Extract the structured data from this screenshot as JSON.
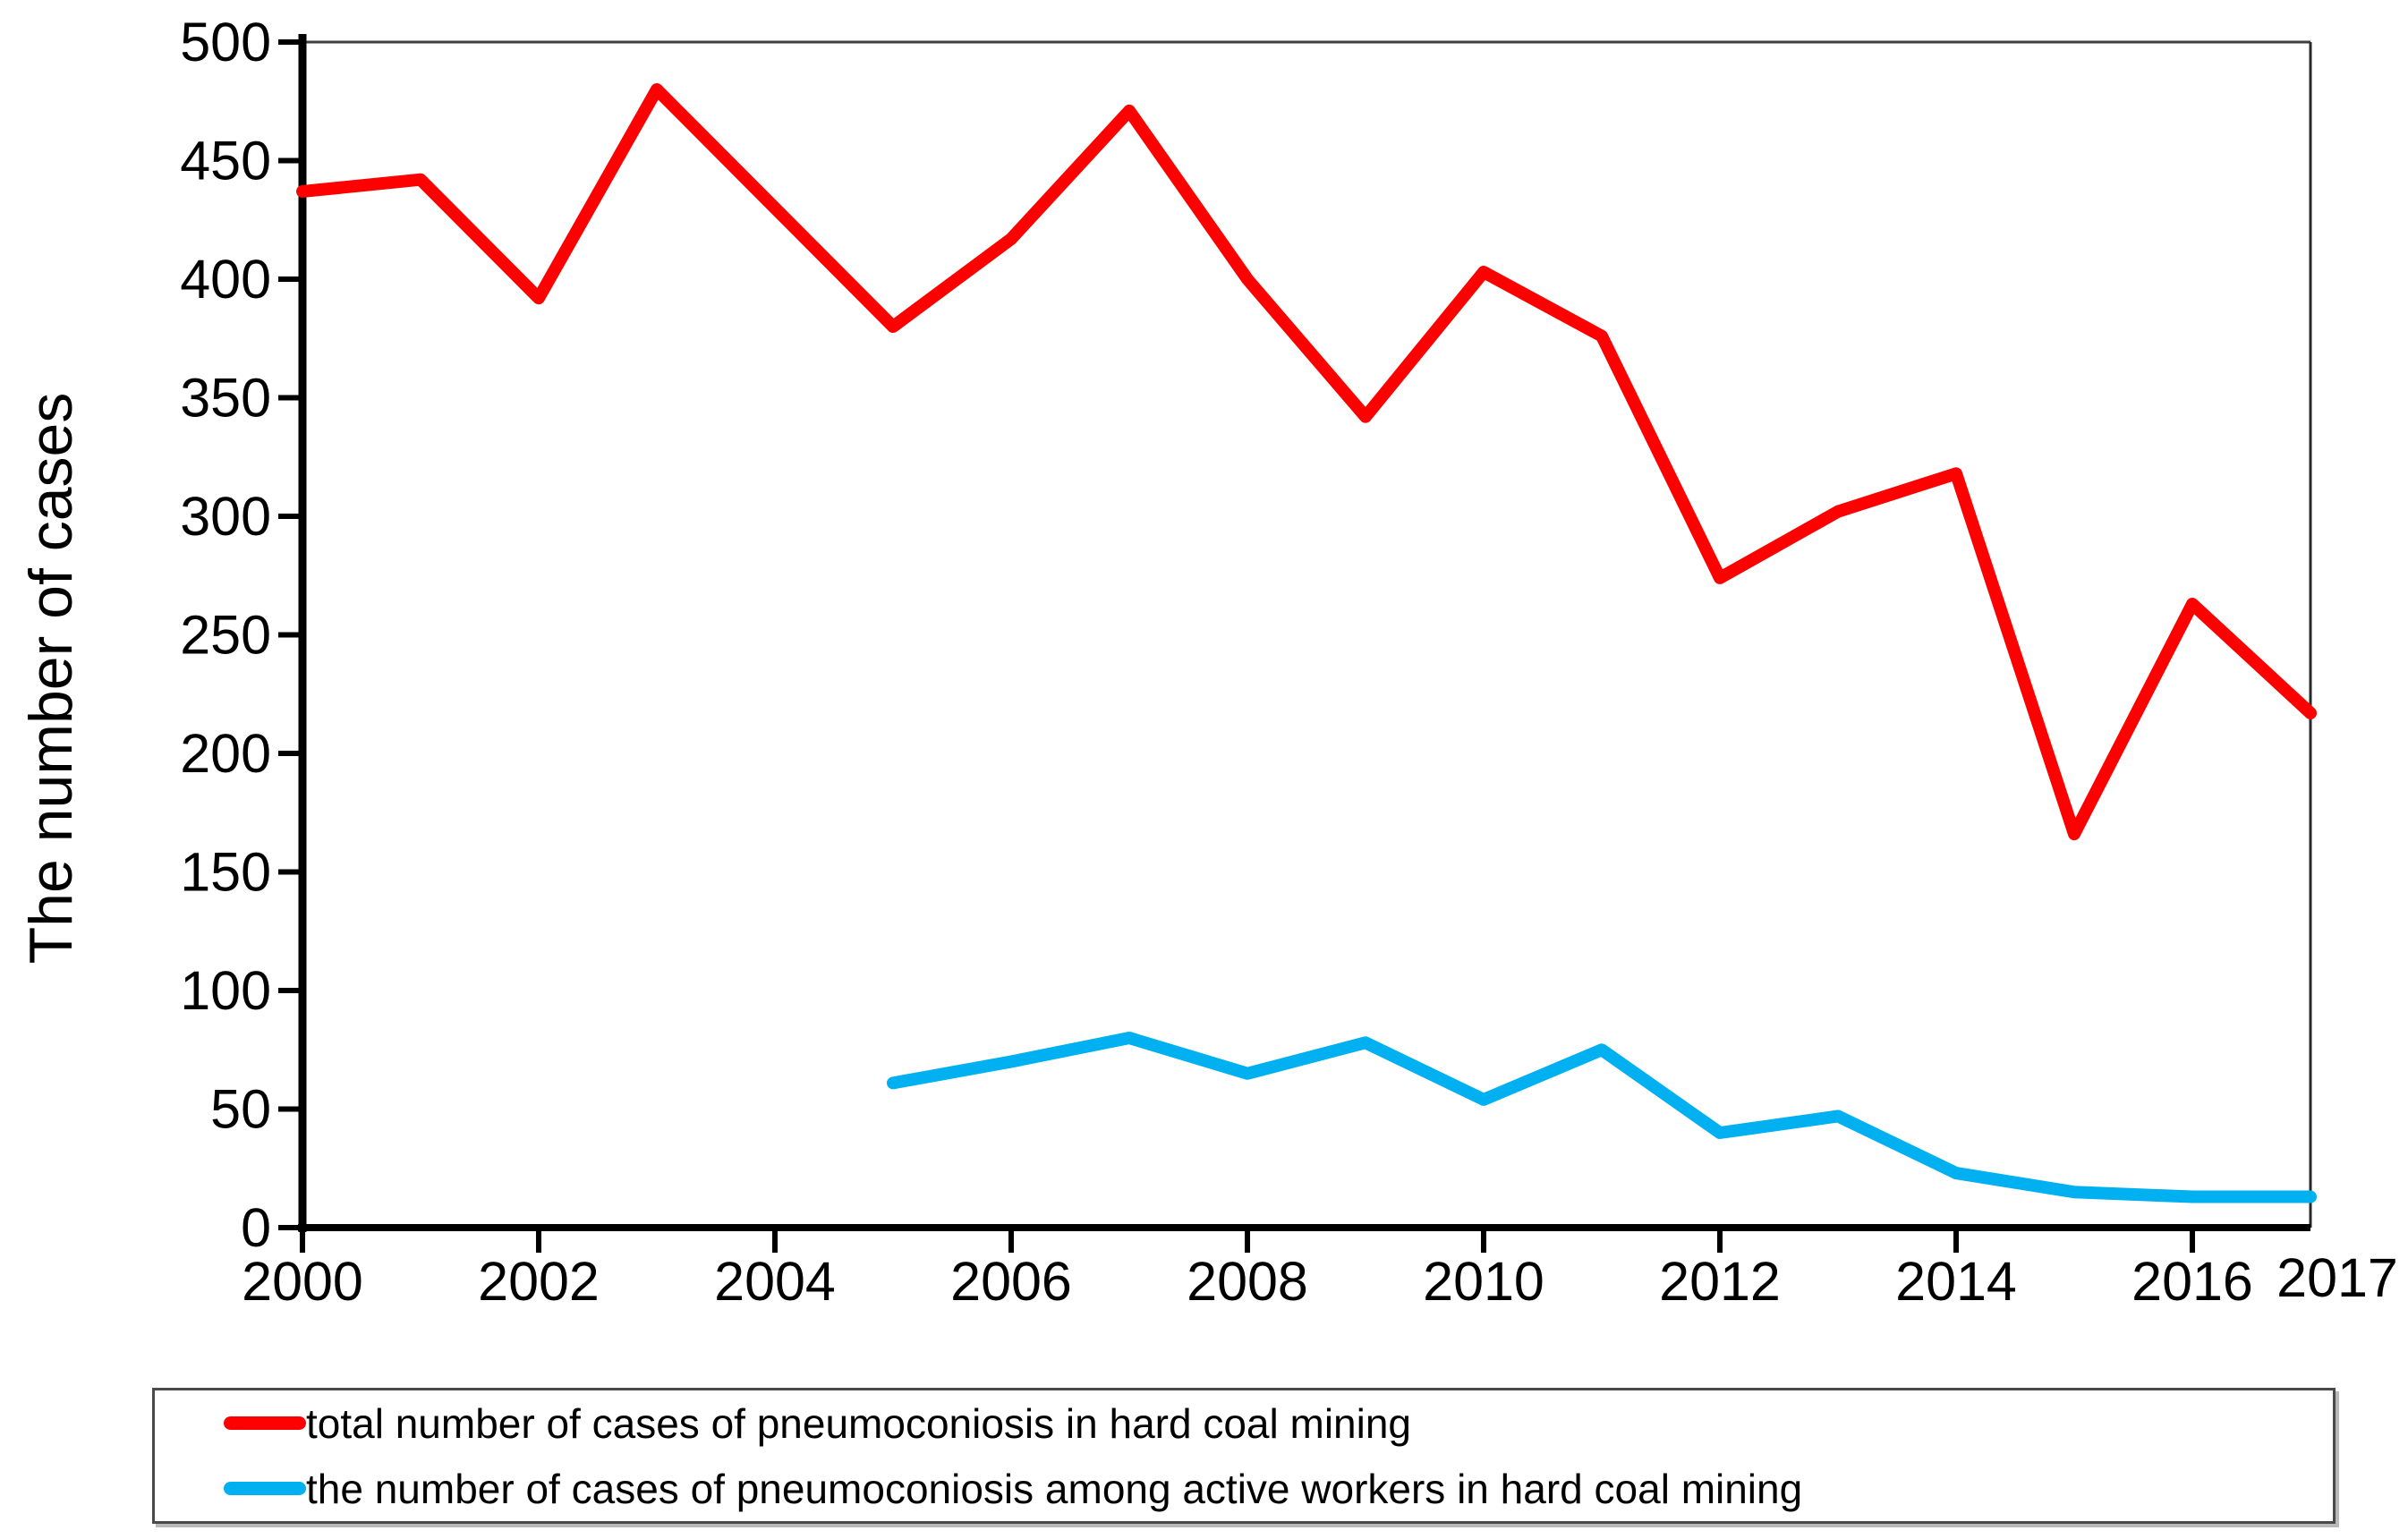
{
  "chart_data": {
    "type": "line",
    "title": "",
    "xlabel": "",
    "ylabel": "The number of cases",
    "xlim": [
      2000,
      2017
    ],
    "ylim": [
      0,
      500
    ],
    "y_tick_step": 50,
    "y_tick_labels": [
      "0",
      "50",
      "100",
      "150",
      "200",
      "250",
      "300",
      "350",
      "400",
      "450",
      "500"
    ],
    "x_tick_years": [
      2000,
      2002,
      2004,
      2006,
      2008,
      2010,
      2012,
      2014,
      2016
    ],
    "x_tick_labels": [
      "2000",
      "2002",
      "2004",
      "2006",
      "2008",
      "2010",
      "2012",
      "2014",
      "2016"
    ],
    "x_end_label": "2017",
    "grid": false,
    "legend_position": "bottom",
    "series": [
      {
        "name": "total number of cases of pneumoconiosis in hard coal mining",
        "color": "#ff0000",
        "x": [
          2000,
          2001,
          2002,
          2003,
          2004,
          2005,
          2006,
          2007,
          2008,
          2009,
          2010,
          2011,
          2012,
          2013,
          2014,
          2015,
          2016,
          2017
        ],
        "values": [
          437,
          442,
          392,
          480,
          430,
          380,
          417,
          471,
          400,
          342,
          403,
          376,
          274,
          302,
          318,
          166,
          263,
          217
        ]
      },
      {
        "name": "the number of cases of pneumoconiosis among active workers in hard coal mining",
        "color": "#00b0f0",
        "x": [
          2005,
          2006,
          2007,
          2008,
          2009,
          2010,
          2011,
          2012,
          2013,
          2014,
          2015,
          2016,
          2017
        ],
        "values": [
          61,
          70,
          80,
          65,
          78,
          54,
          75,
          40,
          47,
          23,
          15,
          13,
          13
        ]
      }
    ]
  }
}
